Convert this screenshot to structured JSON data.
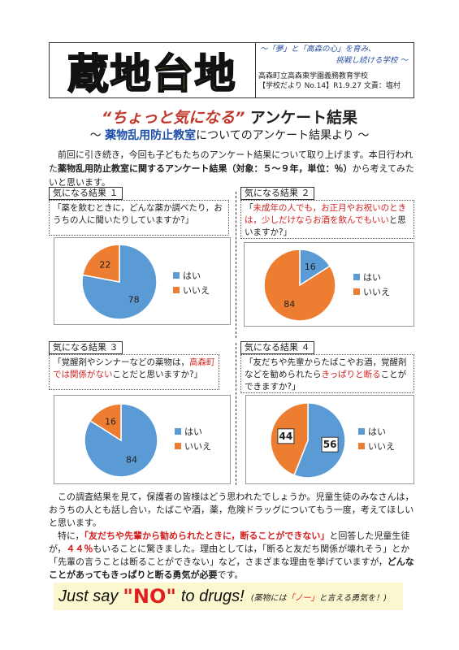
{
  "header": {
    "logo": "蔵地台地",
    "slogan_line1": "～「夢」と「高森の心」を育み、",
    "slogan_line2": "挑戦し続ける学校 ～",
    "school": "高森町立高森東学園義務教育学校",
    "issue": "【学校だより No.14】R1.9.27 文責：塩村"
  },
  "title": {
    "quote": "“ちょっと気になる”",
    "rest": " アンケート結果"
  },
  "subtitle": {
    "pre": "～ ",
    "highlight": "薬物乱用防止教室",
    "post": "についてのアンケート結果より ～"
  },
  "intro": {
    "part1": "前回に引き続き，今回も子どもたちのアンケート結果について取り上げます。本日行われた",
    "bold": "薬物乱用防止教室に関するアンケート結果（対象：５～９年，単位：％）",
    "part2": "から考えてみたいと思います。"
  },
  "sections": [
    {
      "tag": "気になる結果 １",
      "q_a": "「薬を飲むときに，どんな薬か調べたり，おうちの人に聞いたりしていますか?」",
      "q_red": "",
      "q_b": ""
    },
    {
      "tag": "気になる結果 ２",
      "q_a": "「",
      "q_red": "未成年の人でも，お正月やお祝いのときは，少しだけならお酒を飲んでもいい",
      "q_b": "と思いますか?」"
    },
    {
      "tag": "気になる結果 ３",
      "q_a": "「覚醒剤やシンナーなどの薬物は，",
      "q_red": "高森町では関係がない",
      "q_b": "ことだと思いますか?」"
    },
    {
      "tag": "気になる結果 ４",
      "q_a": "「友だちや先輩からたばこやお酒，覚醒剤などを勧められたら",
      "q_red": "きっぱりと断る",
      "q_b": "ことができますか?」"
    }
  ],
  "legend": {
    "yes": "はい",
    "no": "いいえ"
  },
  "colors": {
    "yes": "#5b9bd5",
    "no": "#ed7d31"
  },
  "chart_data": [
    {
      "type": "pie",
      "categories": [
        "はい",
        "いいえ"
      ],
      "values": [
        78,
        22
      ]
    },
    {
      "type": "pie",
      "categories": [
        "はい",
        "いいえ"
      ],
      "values": [
        16,
        84
      ]
    },
    {
      "type": "pie",
      "categories": [
        "はい",
        "いいえ"
      ],
      "values": [
        84,
        16
      ]
    },
    {
      "type": "pie",
      "categories": [
        "はい",
        "いいえ"
      ],
      "values": [
        56,
        44
      ]
    }
  ],
  "outro": "この調査結果を見て，保護者の皆様はどう思われたでしょうか。児童生徒のみなさんは，おうちの人とも話し合い，たばこや酒，薬，危険ドラッグについてもう一度，考えてほしいと思います。",
  "para2": {
    "p1": "特に，",
    "red": "「友だちや先輩から勧められたときに，断ることができない」",
    "p2": "と回答した児童生徒が，",
    "pct": "４４％",
    "p3": "もいることに驚きました。理由としては，「断ると友だち関係が壊れそう」とか「先輩の言うことは断ることができない」など，さまざまな理由を挙げていますが，",
    "bold": "どんなことがあってもきっぱりと断る勇気が必要",
    "p4": "です。"
  },
  "banner": {
    "pre": "Just say",
    "no": "\"NO\"",
    "post": "to drugs!",
    "jp_pre": "(薬物には",
    "jp_red": "「ノー」",
    "jp_post": "と言える勇気を！)"
  }
}
